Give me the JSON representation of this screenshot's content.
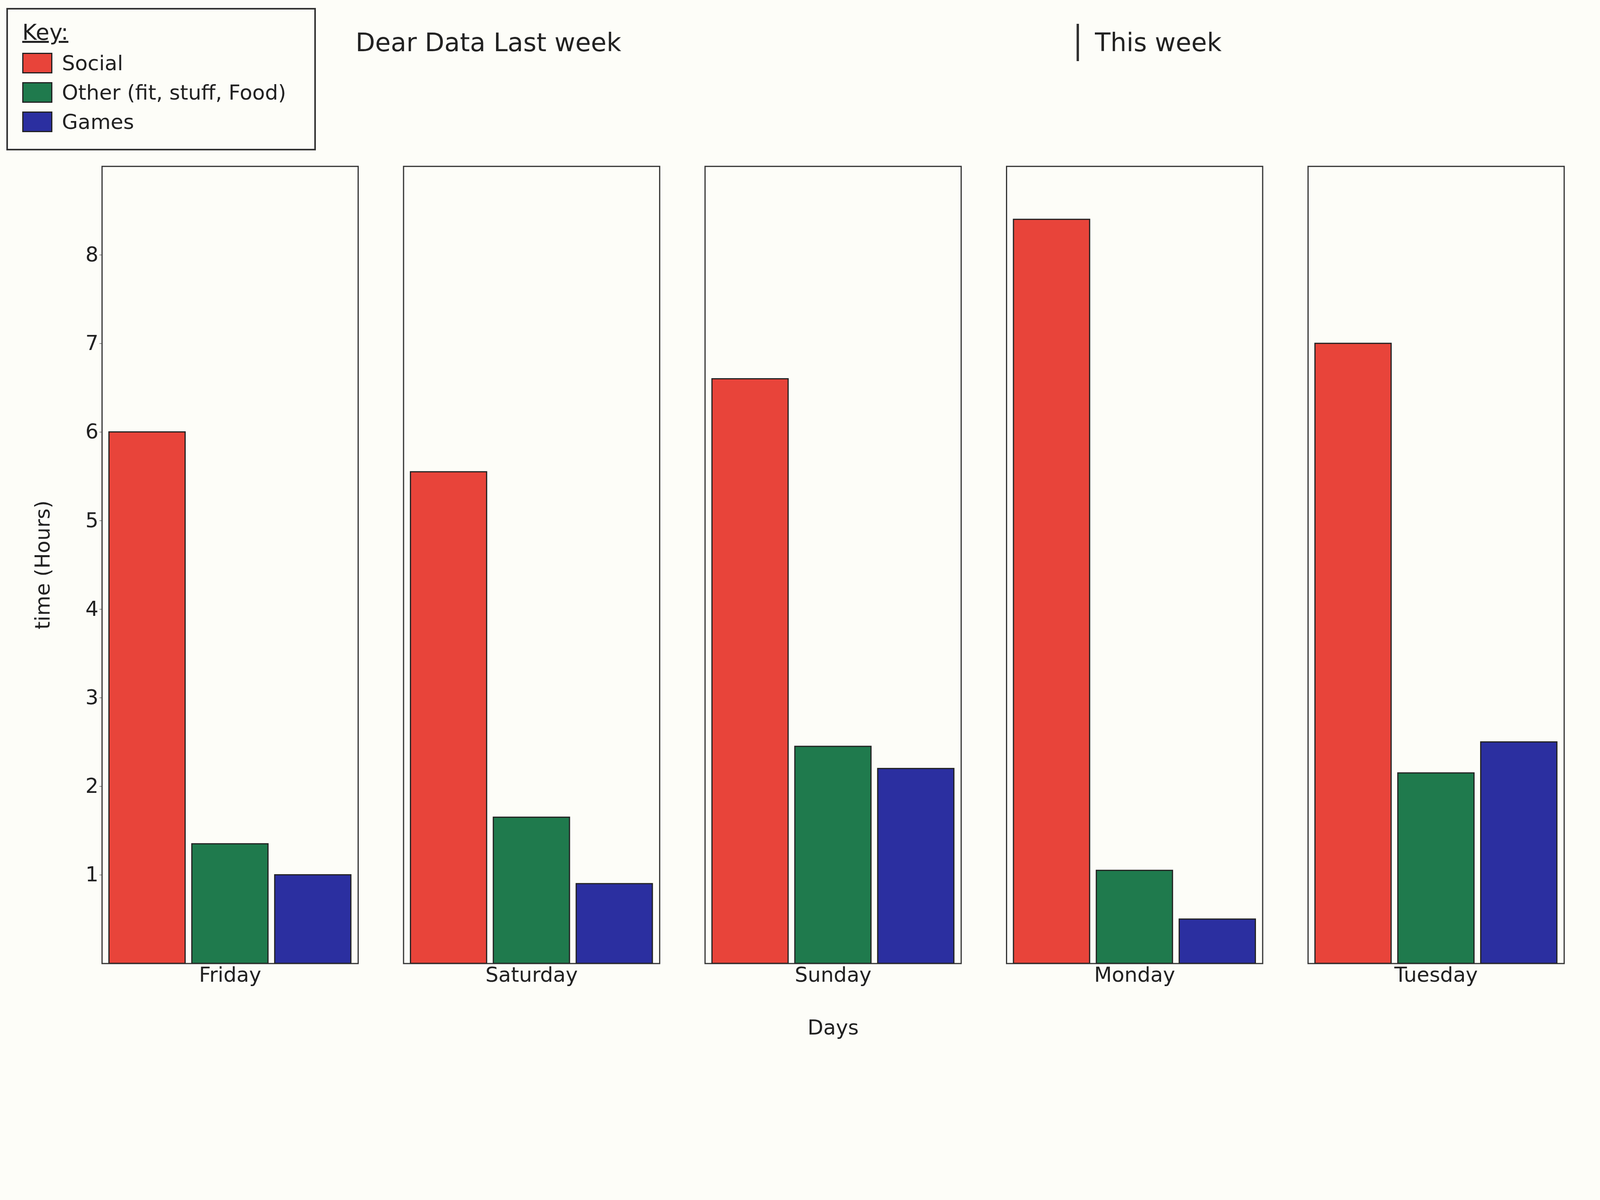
{
  "chart_data": {
    "type": "bar",
    "annotations": [
      "Dear Data Last week",
      "This week"
    ],
    "x_label": "Days",
    "y_label": "time (Hours)",
    "legend_title": "Key:",
    "categories": [
      "Friday",
      "Saturday",
      "Sunday",
      "Monday",
      "Tuesday"
    ],
    "series": [
      {
        "name": "Social",
        "color": "#e8443a",
        "values": [
          6.0,
          5.55,
          6.6,
          8.4,
          7.0
        ]
      },
      {
        "name": "Other (fit, stuff, Food)",
        "color": "#1f7a4d",
        "values": [
          1.35,
          1.65,
          2.45,
          1.05,
          2.15
        ]
      },
      {
        "name": "Games",
        "color": "#2b2fa0",
        "values": [
          1.0,
          0.9,
          2.2,
          0.5,
          2.5
        ]
      }
    ],
    "ylim": [
      0,
      9
    ],
    "yticks": [
      1,
      2,
      3,
      4,
      5,
      6,
      7,
      8
    ],
    "grid": false,
    "legend": "top-left"
  }
}
